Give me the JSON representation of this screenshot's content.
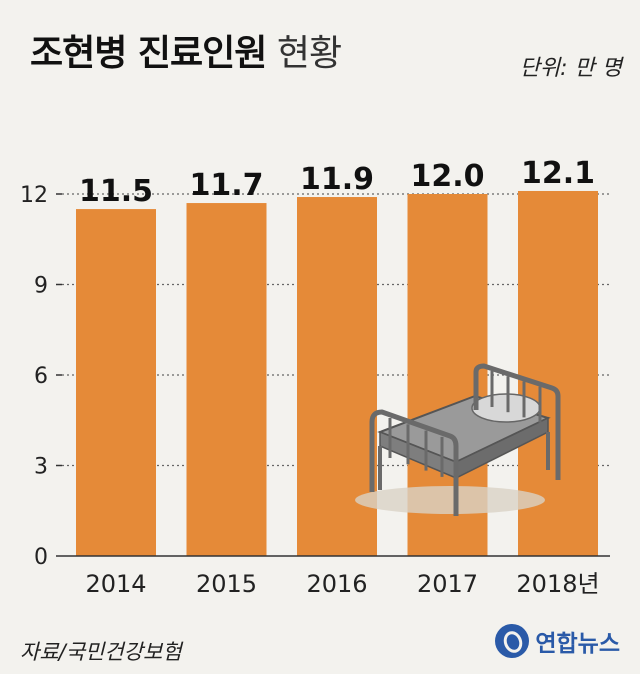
{
  "header": {
    "title_bold": "조현병 진료인원",
    "title_light": "현황",
    "unit": "단위: 만 명"
  },
  "footer": {
    "source": "자료/국민건강보험",
    "brand": "연합뉴스"
  },
  "colors": {
    "bar": "#e58a38",
    "background": "#f3f2ee",
    "gridline": "#666666",
    "text": "#111111",
    "brand": "#2a5aa8"
  },
  "icons": [
    "hospital-bed-icon",
    "yonhap-logo-icon"
  ],
  "chart_data": {
    "type": "bar",
    "categories": [
      "2014",
      "2015",
      "2016",
      "2017",
      "2018년"
    ],
    "values": [
      11.5,
      11.7,
      11.9,
      12.0,
      12.1
    ],
    "value_labels": [
      "11.5",
      "11.7",
      "11.9",
      "12.0",
      "12.1"
    ],
    "title": "조현병 진료인원 현황",
    "unit": "단위: 만 명",
    "ylim": [
      0,
      12.5
    ],
    "yticks": [
      0,
      3,
      6,
      9,
      12
    ],
    "grid": true
  }
}
